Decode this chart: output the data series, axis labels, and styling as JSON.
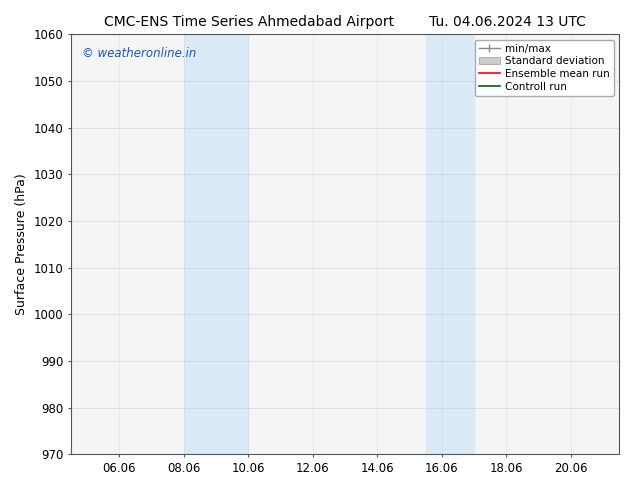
{
  "title_left": "CMC-ENS Time Series Ahmedabad Airport",
  "title_right": "Tu. 04.06.2024 13 UTC",
  "ylabel": "Surface Pressure (hPa)",
  "ylim": [
    970,
    1060
  ],
  "yticks": [
    970,
    980,
    990,
    1000,
    1010,
    1020,
    1030,
    1040,
    1050,
    1060
  ],
  "xlim_start": 4.5,
  "xlim_end": 21.5,
  "xtick_labels": [
    "06.06",
    "08.06",
    "10.06",
    "12.06",
    "14.06",
    "16.06",
    "18.06",
    "20.06"
  ],
  "xtick_positions": [
    6,
    8,
    10,
    12,
    14,
    16,
    18,
    20
  ],
  "shaded_bands": [
    {
      "x_start": 8.0,
      "x_end": 10.0
    },
    {
      "x_start": 15.5,
      "x_end": 17.0
    }
  ],
  "shaded_color": "#daeaf7",
  "watermark_text": "© weatheronline.in",
  "watermark_color": "#1a56c8",
  "legend_entries": [
    {
      "label": "min/max"
    },
    {
      "label": "Standard deviation"
    },
    {
      "label": "Ensemble mean run"
    },
    {
      "label": "Controll run"
    }
  ],
  "bg_color": "#ffffff",
  "plot_bg_color": "#f5f5f5",
  "grid_color": "#bbbbbb",
  "title_fontsize": 10,
  "tick_fontsize": 8.5,
  "ylabel_fontsize": 9
}
